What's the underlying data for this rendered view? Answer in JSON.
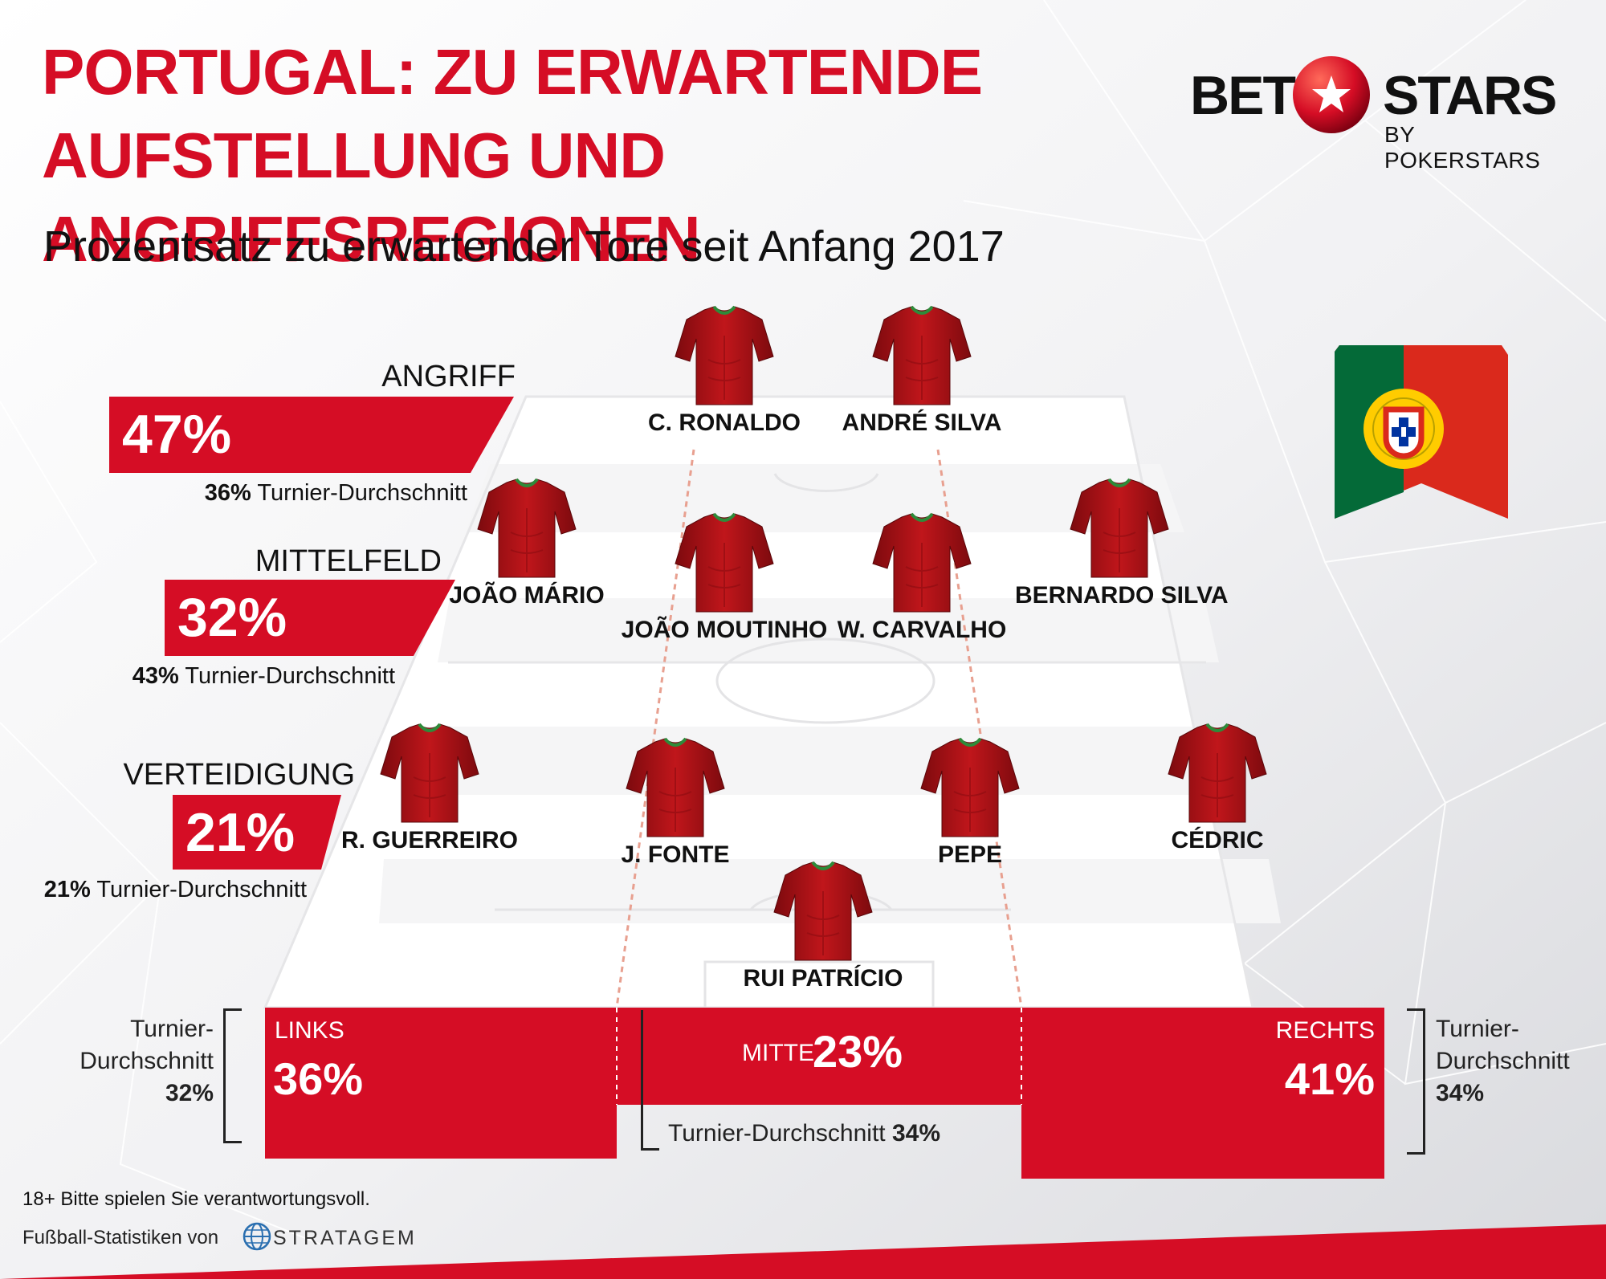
{
  "title": {
    "line1": "PORTUGAL: ZU ERWARTENDE",
    "line2": "AUFSTELLUNG UND ANGRIFFSREGIONEN"
  },
  "subtitle": "Prozentsatz zu erwartender Tore seit Anfang 2017",
  "logo": {
    "bet": "BET",
    "stars": "STARS",
    "by": "BY POKERSTARS"
  },
  "colors": {
    "accent": "#d50d25",
    "pitch": "#ffffff",
    "shirt": "#b01014",
    "flag_green": "#046a38",
    "flag_red": "#da291c"
  },
  "zones": [
    {
      "label": "ANGRIFF",
      "value": "47%",
      "avg_value": "36%",
      "avg_text": "Turnier-Durchschnitt"
    },
    {
      "label": "MITTELFELD",
      "value": "32%",
      "avg_value": "43%",
      "avg_text": "Turnier-Durchschnitt"
    },
    {
      "label": "VERTEIDIGUNG",
      "value": "21%",
      "avg_value": "21%",
      "avg_text": "Turnier-Durchschnitt"
    }
  ],
  "players": [
    "C. RONALDO",
    "ANDRÉ SILVA",
    "JOÃO MÁRIO",
    "JOÃO MOUTINHO",
    "W. CARVALHO",
    "BERNARDO SILVA",
    "R. GUERREIRO",
    "J. FONTE",
    "PEPE",
    "CÉDRIC",
    "RUI PATRÍCIO"
  ],
  "sides": {
    "links": {
      "label": "LINKS",
      "value": "36%",
      "avg_line1": "Turnier-",
      "avg_line2": "Durchschnitt",
      "avg_value": "32%"
    },
    "mitte": {
      "label": "MITTE",
      "value": "23%",
      "avg_text": "Turnier-Durchschnitt",
      "avg_value": "34%"
    },
    "rechts": {
      "label": "RECHTS",
      "value": "41%",
      "avg_line1": "Turnier-",
      "avg_line2": "Durchschnitt",
      "avg_value": "34%"
    }
  },
  "footer": {
    "disclaimer": "18+ Bitte spielen Sie verantwortungsvoll.",
    "stats_by": "Fußball-Statistiken von",
    "stratagem": "STRATAGEM"
  }
}
